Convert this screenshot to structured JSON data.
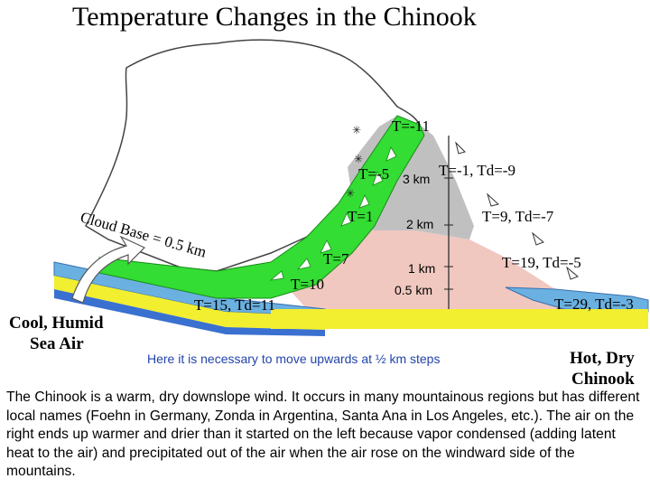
{
  "title": "Temperature Changes in the Chinook",
  "windward_labels": {
    "top": "T=-11",
    "t_minus5": "T=-5",
    "t1": "T=1",
    "t7": "T=7",
    "t10": "T=10",
    "base": "T=15, Td=11"
  },
  "leeward_labels": {
    "l3": "T=-1, Td=-9",
    "l2": "T=9, Td=-7",
    "l1": "T=19, Td=-5",
    "l0": "T=29, Td=-3"
  },
  "altitudes": {
    "a3": "3 km",
    "a2": "2 km",
    "a1": "1 km",
    "a05": "0.5 km"
  },
  "cloud_base": "Cloud Base = 0.5 km",
  "cool_air": [
    "Cool, Humid",
    "Sea Air"
  ],
  "hot_air": [
    "Hot, Dry",
    "Chinook"
  ],
  "note": "Here it is necessary to move upwards at ½ km steps",
  "caption": "The Chinook is a warm, dry downslope wind. It occurs in many mountainous regions but has different local names (Foehn in Germany, Zonda in Argentina, Santa Ana in Los Angeles, etc.). The air on the right ends up warmer and drier than it started on the left because vapor condensed (adding latent heat to the air) and precipitated out of the air when the air rose on the windward side of the mountains.",
  "colors": {
    "green": "#33dd33",
    "mountain_top": "#c0c0c0",
    "mountain_low": "#f0c8c0",
    "sea": "#6ab0e0",
    "ground": "#f2ee30",
    "note": "#2244aa"
  }
}
